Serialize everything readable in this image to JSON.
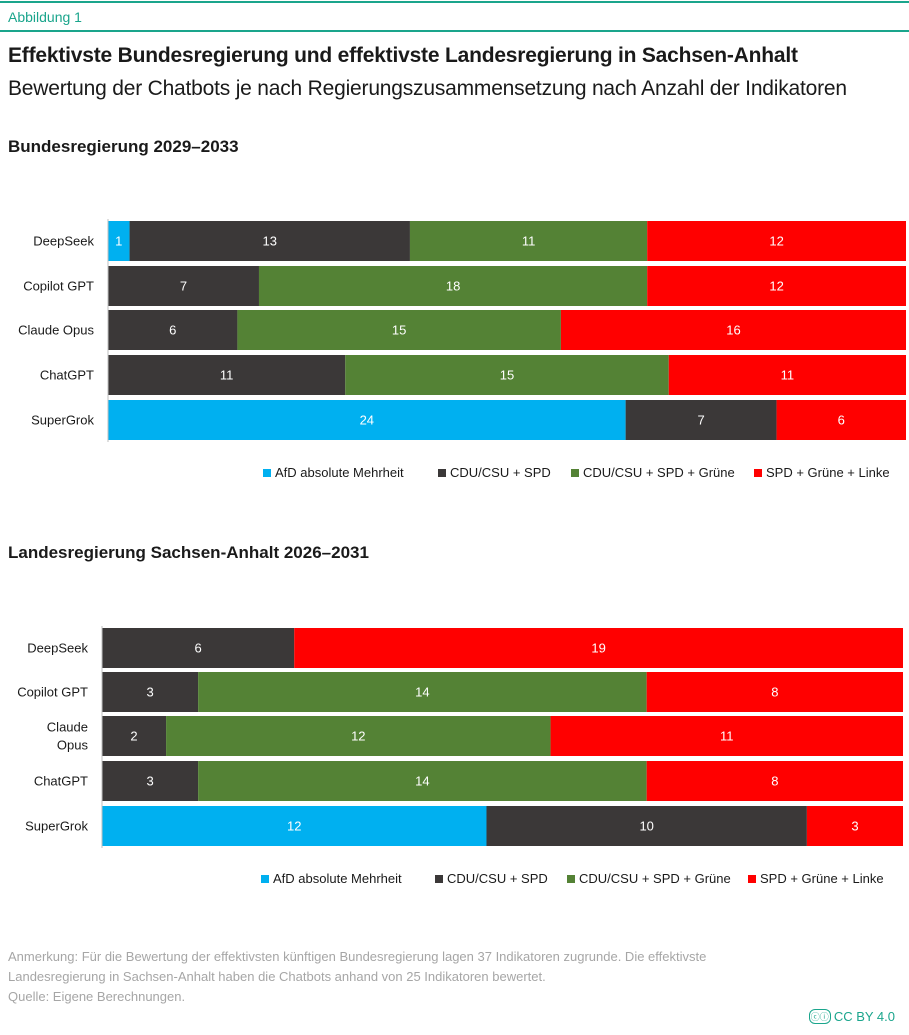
{
  "figure_label": "Abbildung 1",
  "title": "Effektivste Bundesregierung und effektivste Landesregierung in Sachsen-Anhalt",
  "subtitle": "Bewertung der Chatbots je nach Regierungszusammensetzung nach Anzahl der Indikatoren",
  "colors": {
    "afd": "#00b0f0",
    "cdu_spd": "#3b3838",
    "cdu_spd_gruene": "#548235",
    "spd_gruene_linke": "#ff0000"
  },
  "chart_data": [
    {
      "type": "bar",
      "orientation": "horizontal",
      "stacked": "100%",
      "title": "Bundesregierung 2029–2033",
      "categories": [
        "DeepSeek",
        "Copilot GPT",
        "Claude Opus",
        "ChatGPT",
        "SuperGrok"
      ],
      "series": [
        {
          "name": "AfD absolute Mehrheit",
          "color": "#00b0f0",
          "values": [
            1,
            0,
            0,
            0,
            24
          ]
        },
        {
          "name": "CDU/CSU + SPD",
          "color": "#3b3838",
          "values": [
            13,
            7,
            6,
            11,
            7
          ]
        },
        {
          "name": "CDU/CSU + SPD + Grüne",
          "color": "#548235",
          "values": [
            11,
            18,
            15,
            15,
            0
          ]
        },
        {
          "name": "SPD + Grüne + Linke",
          "color": "#ff0000",
          "values": [
            12,
            12,
            16,
            11,
            6
          ]
        }
      ],
      "legend": "bottom"
    },
    {
      "type": "bar",
      "orientation": "horizontal",
      "stacked": "100%",
      "title": "Landesregierung Sachsen-Anhalt 2026–2031",
      "categories": [
        "DeepSeek",
        "Copilot GPT",
        "Claude Opus",
        "ChatGPT",
        "SuperGrok"
      ],
      "series": [
        {
          "name": "AfD absolute Mehrheit",
          "color": "#00b0f0",
          "values": [
            0,
            0,
            0,
            0,
            12
          ]
        },
        {
          "name": "CDU/CSU + SPD",
          "color": "#3b3838",
          "values": [
            6,
            3,
            2,
            3,
            10
          ]
        },
        {
          "name": "CDU/CSU + SPD + Grüne",
          "color": "#548235",
          "values": [
            0,
            14,
            12,
            14,
            0
          ]
        },
        {
          "name": "SPD + Grüne + Linke",
          "color": "#ff0000",
          "values": [
            19,
            8,
            11,
            8,
            3
          ]
        }
      ],
      "legend": "bottom"
    }
  ],
  "note": "Anmerkung: Für die Bewertung der effektivsten künftigen Bundesregierung lagen 37 Indikatoren zugrunde. Die effektivste Landesregierung in Sachsen-Anhalt haben die Chatbots anhand von 25 Indikatoren bewertet.",
  "source": "Quelle: Eigene Berechnungen.",
  "license": "CC BY 4.0",
  "license_icon": "cc-by-icon"
}
